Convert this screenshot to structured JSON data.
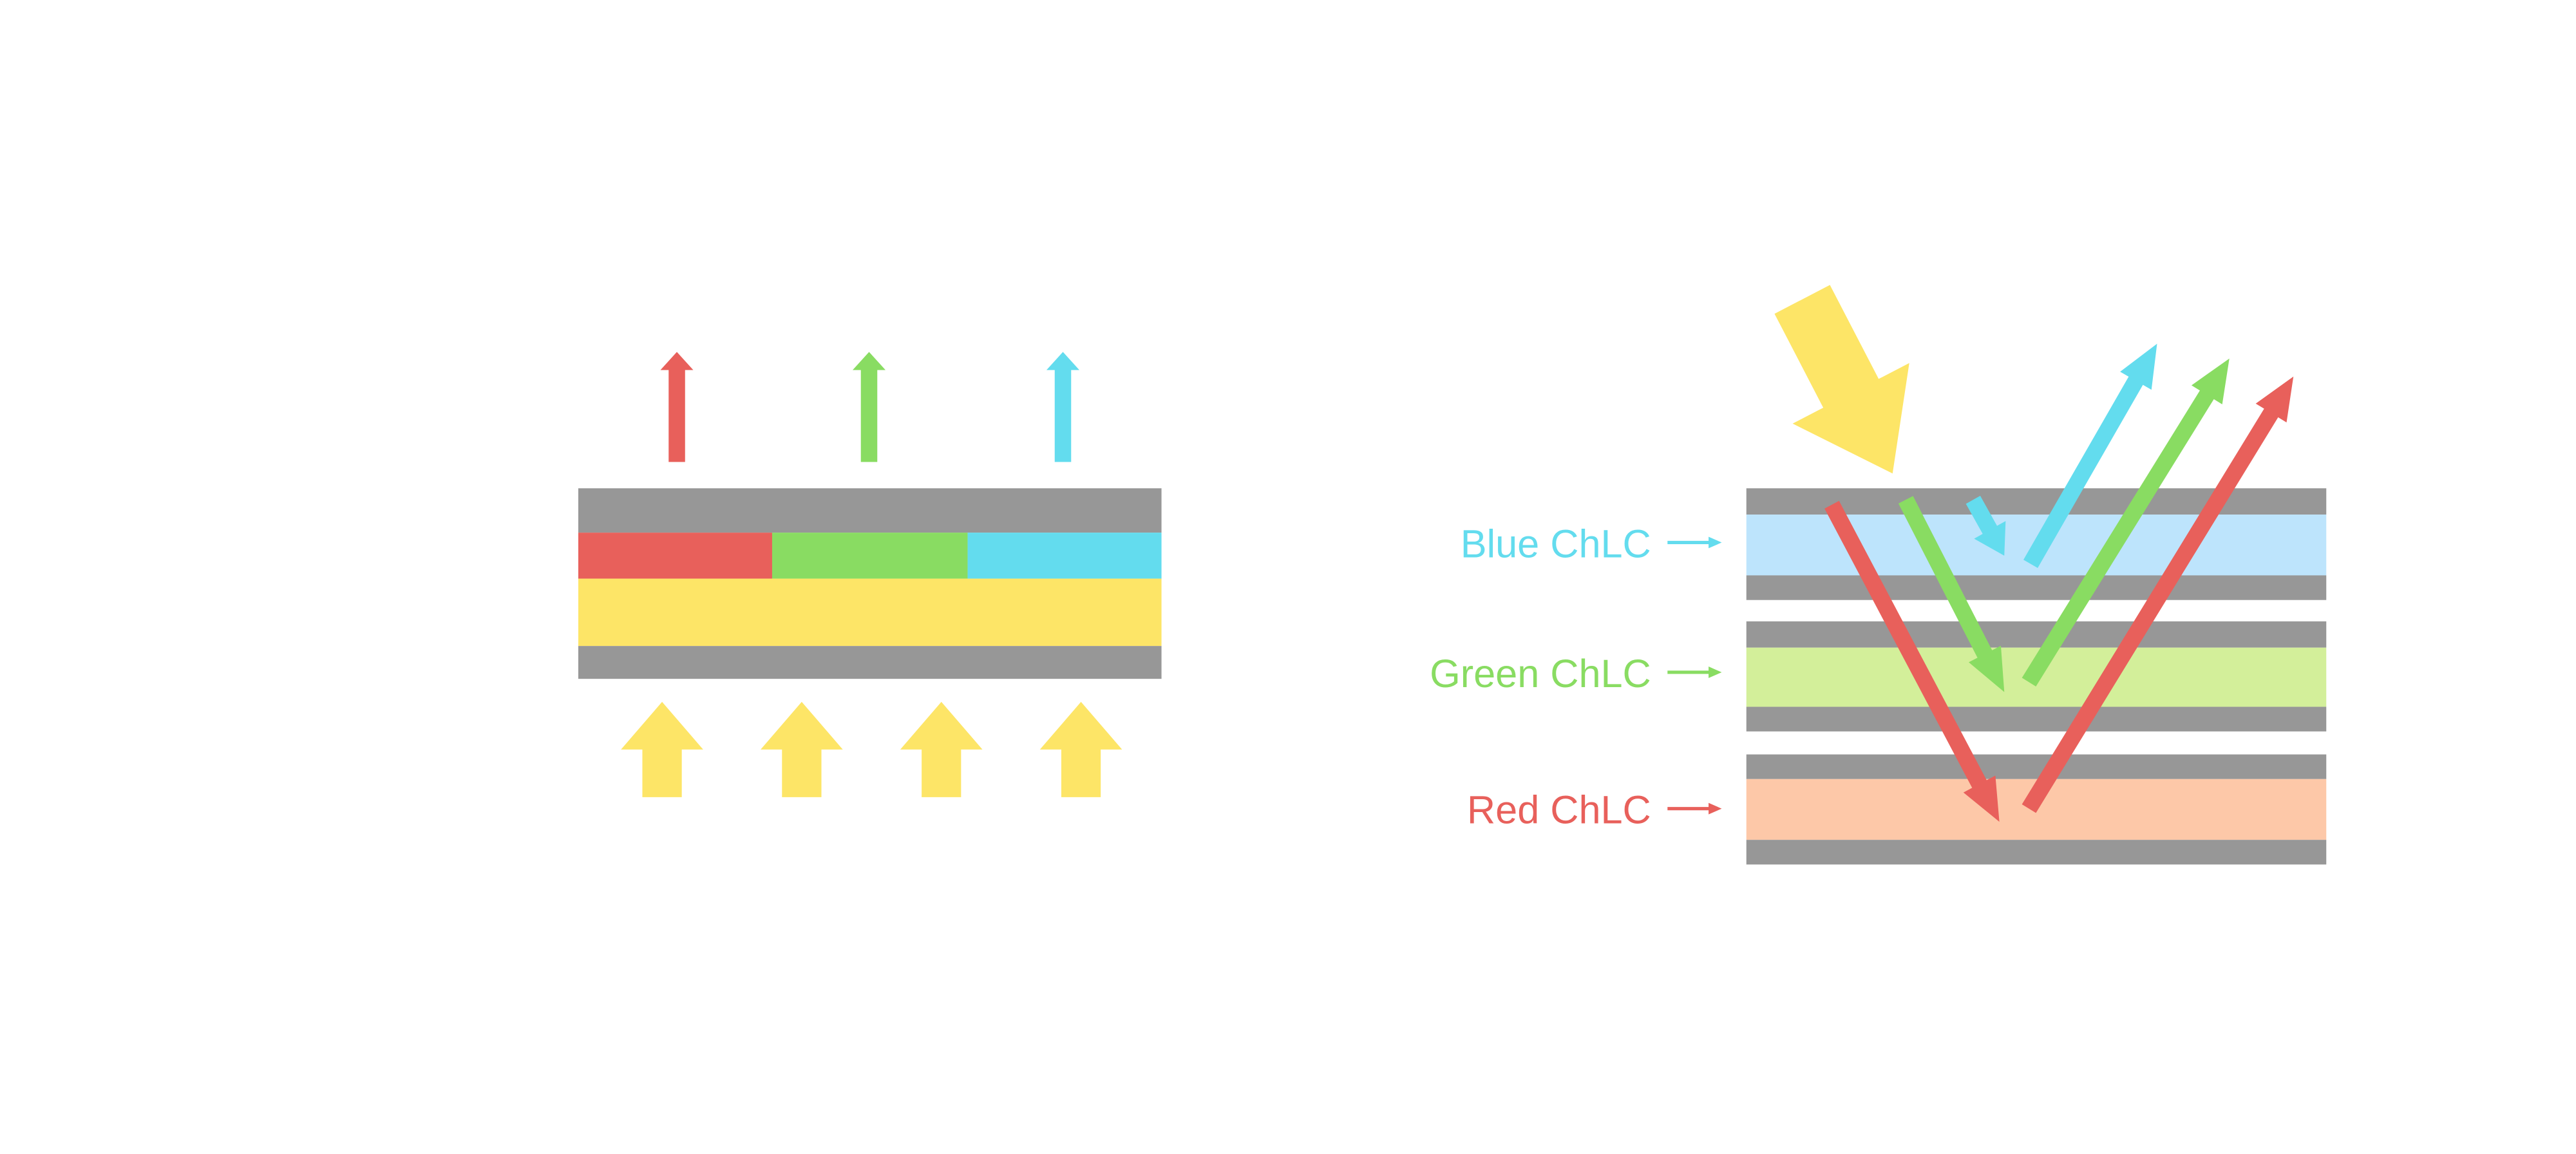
{
  "labels": {
    "blue": "Blue ChLC",
    "green": "Green ChLC",
    "red": "Red ChLC"
  },
  "colors": {
    "gray": "#979797",
    "red": "#e8605b",
    "green": "#89dc62",
    "cyan": "#63dcee",
    "yellow": "#fde567",
    "blue_layer": "#bde4fc",
    "green_layer": "#d3ef9a",
    "red_layer": "#fdc8a8"
  }
}
